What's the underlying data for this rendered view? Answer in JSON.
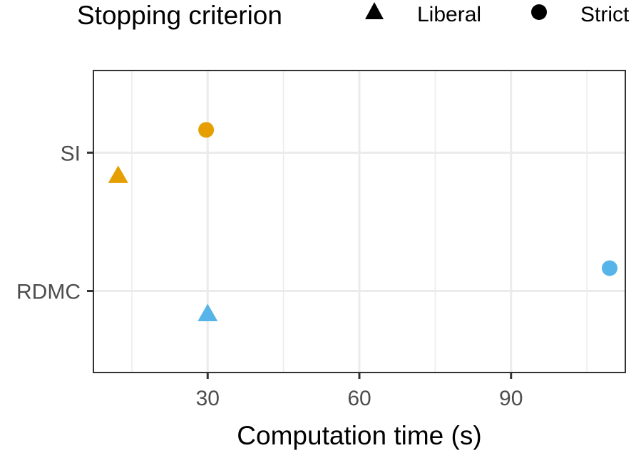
{
  "chart_data": {
    "type": "scatter",
    "title": "",
    "xlabel": "Computation time (s)",
    "ylabel": "",
    "xlim": [
      7.4,
      112.6
    ],
    "x_ticks": [
      30,
      60,
      90
    ],
    "x_tick_labels": [
      "30",
      "60",
      "90"
    ],
    "y_categories": [
      "SI",
      "RDMC"
    ],
    "grid": true,
    "legend": {
      "title": "Stopping criterion",
      "position": "top",
      "entries": [
        {
          "label": "Liberal",
          "shape": "triangle"
        },
        {
          "label": "Strict",
          "shape": "circle"
        }
      ]
    },
    "colors": {
      "SI": "#E69F00",
      "RDMC": "#56B4E9"
    },
    "points": [
      {
        "method": "SI",
        "criterion": "Strict",
        "x": 29.7
      },
      {
        "method": "SI",
        "criterion": "Liberal",
        "x": 12.3
      },
      {
        "method": "RDMC",
        "criterion": "Strict",
        "x": 109.5
      },
      {
        "method": "RDMC",
        "criterion": "Liberal",
        "x": 30.0
      }
    ]
  }
}
